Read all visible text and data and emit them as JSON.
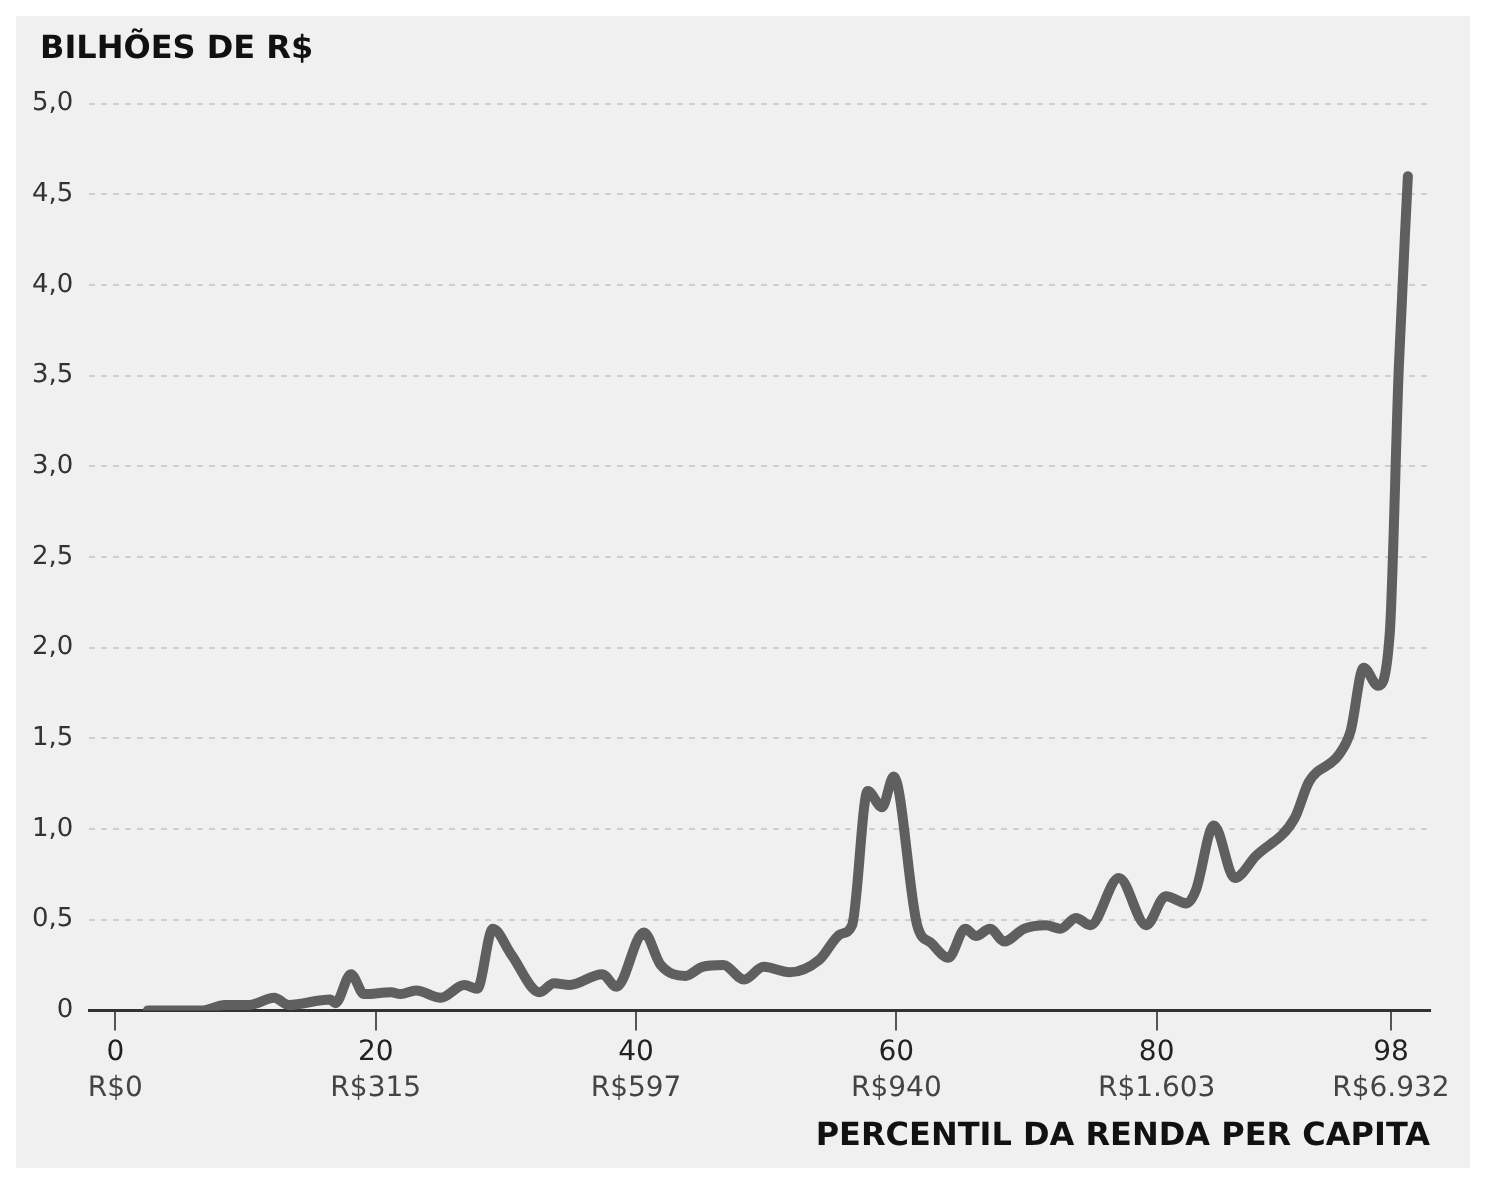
{
  "chart_data": {
    "type": "line",
    "ylabel": "BILHÕES DE R$",
    "xlabel": "PERCENTIL DA RENDA PER CAPITA",
    "x": [
      2.5,
      6.7,
      8.4,
      10.3,
      12.2,
      13.3,
      16.5,
      16.9,
      18.1,
      19.1,
      21.2,
      21.9,
      23.1,
      25.0,
      26.8,
      27.8,
      29.0,
      30.4,
      32.6,
      33.7,
      34.9,
      37.4,
      38.5,
      40.6,
      41.9,
      43.8,
      45.1,
      46.7,
      48.3,
      49.8,
      51.8,
      54.1,
      55.7,
      56.6,
      57.8,
      58.9,
      59.8,
      61.6,
      62.7,
      64.0,
      65.3,
      66.1,
      67.2,
      68.3,
      69.8,
      71.5,
      72.6,
      73.8,
      74.9,
      77.1,
      79.2,
      80.7,
      82.3,
      83.0,
      84.4,
      86.0,
      87.6,
      90.6,
      91.7,
      94.0,
      94.9,
      95.9,
      97.0,
      97.9,
      98.6,
      99.3
    ],
    "series": [
      {
        "color": "#5f5f5f",
        "values": [
          0,
          0,
          0.03,
          0.03,
          0.07,
          0.03,
          0.06,
          0.04,
          0.2,
          0.09,
          0.1,
          0.09,
          0.11,
          0.07,
          0.14,
          0.12,
          0.45,
          0.31,
          0.1,
          0.15,
          0.14,
          0.2,
          0.13,
          0.43,
          0.25,
          0.19,
          0.24,
          0.25,
          0.17,
          0.24,
          0.21,
          0.28,
          0.42,
          0.47,
          1.21,
          1.12,
          1.29,
          0.47,
          0.37,
          0.29,
          0.45,
          0.41,
          0.45,
          0.38,
          0.45,
          0.47,
          0.45,
          0.51,
          0.47,
          0.73,
          0.47,
          0.63,
          0.59,
          0.66,
          1.02,
          0.73,
          0.85,
          1.06,
          1.26,
          1.41,
          1.54,
          1.89,
          1.79,
          2.07,
          3.54,
          4.6
        ]
      }
    ],
    "xlim": [
      -2,
      101
    ],
    "xticks": [
      0,
      20,
      40,
      60,
      80,
      98
    ],
    "annotations": [
      "R$0",
      "R$315",
      "R$597",
      "R$940",
      "R$1.603",
      "R$6.932"
    ],
    "ylim": [
      0,
      5
    ],
    "yticks": [
      {
        "value": 0,
        "label": "0"
      },
      {
        "value": 0.5,
        "label": "0,5"
      },
      {
        "value": 1,
        "label": "1,0"
      },
      {
        "value": 1.5,
        "label": "1,5"
      },
      {
        "value": 2,
        "label": "2,0"
      },
      {
        "value": 2.5,
        "label": "2,5"
      },
      {
        "value": 3,
        "label": "3,0"
      },
      {
        "value": 3.5,
        "label": "3,5"
      },
      {
        "value": 4,
        "label": "4,0"
      },
      {
        "value": 4.5,
        "label": "4,5"
      },
      {
        "value": 5,
        "label": "5,0"
      }
    ],
    "grid": "y",
    "legend": false,
    "marker": "none",
    "line_style": "solid"
  }
}
